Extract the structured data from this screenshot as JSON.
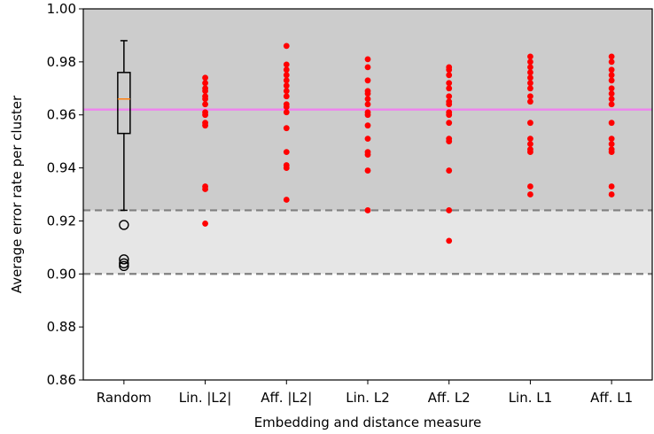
{
  "chart_data": {
    "type": "scatter",
    "title": "",
    "xlabel": "Embedding and distance measure",
    "ylabel": "Average error rate per cluster",
    "ylim": [
      0.86,
      1.0
    ],
    "yticks": [
      "0.86",
      "0.88",
      "0.90",
      "0.92",
      "0.94",
      "0.96",
      "0.98",
      "1.00"
    ],
    "categories": [
      "Random",
      "Lin. |L2|",
      "Aff. |L2|",
      "Lin. L2",
      "Aff. L2",
      "Lin. L1",
      "Aff. L1"
    ],
    "grid": false,
    "shaded_bands": [
      {
        "from": 0.9,
        "to": 0.924,
        "color": "#e6e6e6"
      },
      {
        "from": 0.924,
        "to": 1.0,
        "color": "#cccccc"
      }
    ],
    "reference_lines": [
      {
        "y": 0.9,
        "style": "dashed",
        "color": "#808080"
      },
      {
        "y": 0.924,
        "style": "dashed",
        "color": "#808080"
      },
      {
        "y": 0.962,
        "style": "solid",
        "color": "#ee82ee"
      }
    ],
    "boxplot": {
      "category": "Random",
      "whisker_low": 0.924,
      "q1": 0.953,
      "median": 0.966,
      "q3": 0.976,
      "whisker_high": 0.988,
      "outliers": [
        0.9185,
        0.9055,
        0.904,
        0.903
      ],
      "median_color": "#ff7f0e",
      "outlier_color": "#000000"
    },
    "point_color": "#ff0000",
    "series": [
      {
        "category": "Lin. |L2|",
        "values": [
          0.974,
          0.972,
          0.97,
          0.969,
          0.967,
          0.966,
          0.964,
          0.961,
          0.96,
          0.957,
          0.956,
          0.933,
          0.932,
          0.919
        ]
      },
      {
        "category": "Aff. |L2|",
        "values": [
          0.986,
          0.979,
          0.977,
          0.975,
          0.973,
          0.971,
          0.969,
          0.967,
          0.964,
          0.963,
          0.961,
          0.955,
          0.946,
          0.941,
          0.94,
          0.928
        ]
      },
      {
        "category": "Lin. L2",
        "values": [
          0.981,
          0.978,
          0.973,
          0.969,
          0.968,
          0.966,
          0.964,
          0.961,
          0.96,
          0.956,
          0.951,
          0.946,
          0.945,
          0.939,
          0.924
        ]
      },
      {
        "category": "Aff. L2",
        "values": [
          0.978,
          0.977,
          0.975,
          0.972,
          0.97,
          0.967,
          0.965,
          0.964,
          0.961,
          0.96,
          0.957,
          0.951,
          0.95,
          0.939,
          0.924,
          0.9125
        ]
      },
      {
        "category": "Lin. L1",
        "values": [
          0.982,
          0.98,
          0.978,
          0.976,
          0.974,
          0.972,
          0.97,
          0.967,
          0.965,
          0.957,
          0.951,
          0.949,
          0.947,
          0.946,
          0.933,
          0.93
        ]
      },
      {
        "category": "Aff. L1",
        "values": [
          0.982,
          0.98,
          0.977,
          0.975,
          0.973,
          0.97,
          0.968,
          0.966,
          0.964,
          0.957,
          0.951,
          0.949,
          0.947,
          0.946,
          0.933,
          0.93
        ]
      }
    ]
  }
}
